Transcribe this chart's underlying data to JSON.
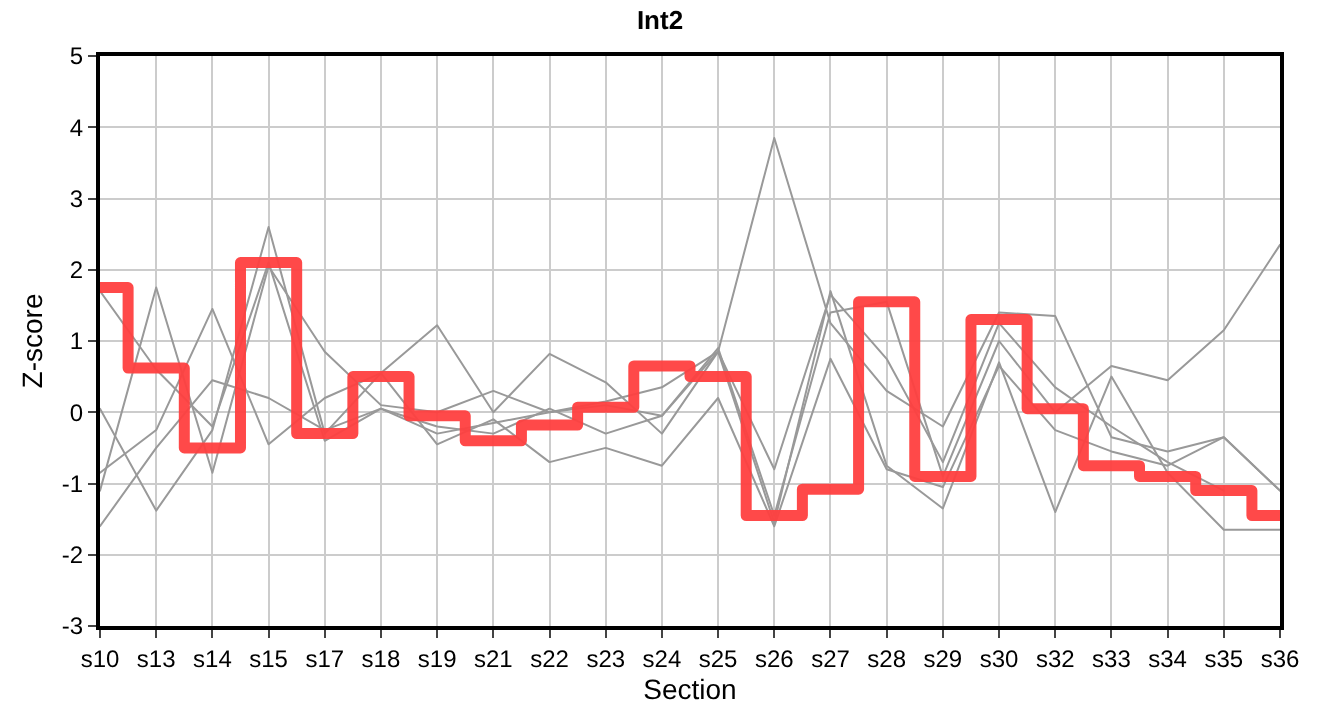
{
  "chart_data": {
    "type": "line",
    "title": "Int2",
    "xlabel": "Section",
    "ylabel": "Z-score",
    "categories": [
      "s10",
      "s13",
      "s14",
      "s15",
      "s17",
      "s18",
      "s19",
      "s21",
      "s22",
      "s23",
      "s24",
      "s25",
      "s26",
      "s27",
      "s28",
      "s29",
      "s30",
      "s32",
      "s33",
      "s34",
      "s35",
      "s36"
    ],
    "ylim": [
      -3,
      5
    ],
    "yticks": [
      -3,
      -2,
      -1,
      0,
      1,
      2,
      3,
      4,
      5
    ],
    "grid": true,
    "marker": "none",
    "line_style": "solid",
    "series": [
      {
        "type": "line",
        "color": "#999999",
        "values": [
          1.7,
          0.6,
          -0.2,
          2.1,
          -0.4,
          0.05,
          -0.3,
          -0.15,
          0.0,
          0.1,
          -0.05,
          0.85,
          3.85,
          1.25,
          0.3,
          -0.2,
          1.4,
          1.35,
          -0.35,
          -0.55,
          -0.35,
          -1.1
        ]
      },
      {
        "type": "line",
        "color": "#999999",
        "values": [
          0.05,
          -1.38,
          -0.25,
          2.6,
          -0.3,
          0.55,
          1.22,
          0.0,
          0.82,
          0.42,
          -0.3,
          0.85,
          -1.55,
          1.7,
          -0.75,
          -1.35,
          0.7,
          -1.4,
          0.5,
          -0.85,
          -1.65,
          -1.65
        ]
      },
      {
        "type": "line",
        "color": "#999999",
        "values": [
          -1.1,
          1.75,
          -0.85,
          2.05,
          0.85,
          0.1,
          0.0,
          0.3,
          0.0,
          0.15,
          0.35,
          0.85,
          -0.8,
          1.65,
          0.75,
          -0.7,
          1.25,
          0.35,
          -0.2,
          -0.7,
          -1.1,
          null
        ]
      },
      {
        "type": "line",
        "color": "#999999",
        "values": [
          -0.85,
          -0.25,
          1.45,
          -0.45,
          0.2,
          0.55,
          -0.45,
          -0.1,
          -0.7,
          -0.5,
          -0.75,
          0.2,
          -1.6,
          0.75,
          -0.8,
          -1.05,
          0.65,
          -0.25,
          -0.55,
          -0.75,
          -0.35,
          -1.1
        ]
      },
      {
        "type": "line",
        "color": "#999999",
        "values": [
          -1.6,
          -0.5,
          0.45,
          0.2,
          -0.25,
          0.05,
          -0.2,
          -0.3,
          0.05,
          -0.3,
          -0.05,
          0.9,
          -1.45,
          1.4,
          1.55,
          -0.9,
          1.0,
          0.0,
          0.65,
          0.45,
          1.15,
          2.35
        ]
      },
      {
        "type": "step",
        "color": "#ff4040",
        "values": [
          1.75,
          0.62,
          -0.5,
          2.1,
          -0.3,
          0.5,
          -0.05,
          -0.4,
          -0.18,
          0.07,
          0.65,
          0.5,
          -1.45,
          -1.08,
          1.55,
          -0.9,
          1.3,
          0.05,
          -0.75,
          -0.9,
          -1.1,
          -1.45
        ]
      }
    ]
  }
}
